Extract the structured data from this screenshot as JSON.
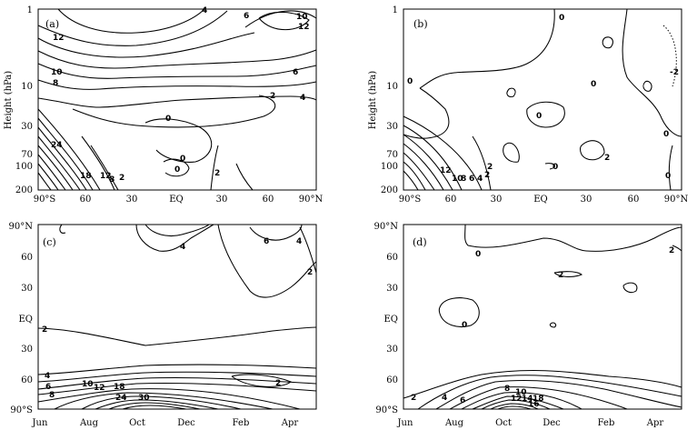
{
  "chart_data": [
    {
      "type": "contour",
      "panel_label": "(a)",
      "ylabel": "Height (hPa)",
      "x_ticks": [
        "90°S",
        "60",
        "30",
        "EQ",
        "30",
        "60",
        "90°N"
      ],
      "y_ticks": [
        "1",
        "10",
        "30",
        "70",
        "100",
        "200"
      ],
      "x_axis": "latitude",
      "y_axis": "pressure",
      "y_scale": "log",
      "contour_labels": [
        "4",
        "6",
        "10",
        "12",
        "12",
        "10",
        "8",
        "6",
        "4",
        "2",
        "0",
        "0",
        "0",
        "2",
        "24",
        "18",
        "12",
        "8",
        "2"
      ]
    },
    {
      "type": "contour",
      "panel_label": "(b)",
      "ylabel": "Height (hPa)",
      "x_ticks": [
        "90°S",
        "60",
        "30",
        "EQ",
        "30",
        "60",
        "90°N"
      ],
      "y_ticks": [
        "1",
        "10",
        "30",
        "70",
        "100",
        "200"
      ],
      "x_axis": "latitude",
      "y_axis": "pressure",
      "y_scale": "log",
      "contour_labels": [
        "0",
        "0",
        "0",
        "0",
        "0",
        "-2",
        "2",
        "2",
        "0",
        "0",
        "12",
        "10",
        "8",
        "6",
        "4",
        "2"
      ]
    },
    {
      "type": "contour",
      "panel_label": "(c)",
      "x_ticks": [
        "Jun",
        "Aug",
        "Oct",
        "Dec",
        "Feb",
        "Apr"
      ],
      "y_ticks": [
        "90°N",
        "60",
        "30",
        "EQ",
        "30",
        "60",
        "90°S"
      ],
      "x_axis": "month",
      "y_axis": "latitude",
      "contour_labels": [
        "4",
        "6",
        "4",
        "2",
        "2",
        "4",
        "6",
        "8",
        "10",
        "12",
        "18",
        "24",
        "30",
        "2"
      ]
    },
    {
      "type": "contour",
      "panel_label": "(d)",
      "x_ticks": [
        "Jun",
        "Aug",
        "Oct",
        "Dec",
        "Feb",
        "Apr"
      ],
      "y_ticks": [
        "90°N",
        "60",
        "30",
        "EQ",
        "30",
        "60",
        "90°S"
      ],
      "x_axis": "month",
      "y_axis": "latitude",
      "contour_labels": [
        "0",
        "2",
        "2",
        "0",
        "2",
        "4",
        "6",
        "8",
        "10",
        "12",
        "14",
        "16",
        "18"
      ]
    }
  ]
}
